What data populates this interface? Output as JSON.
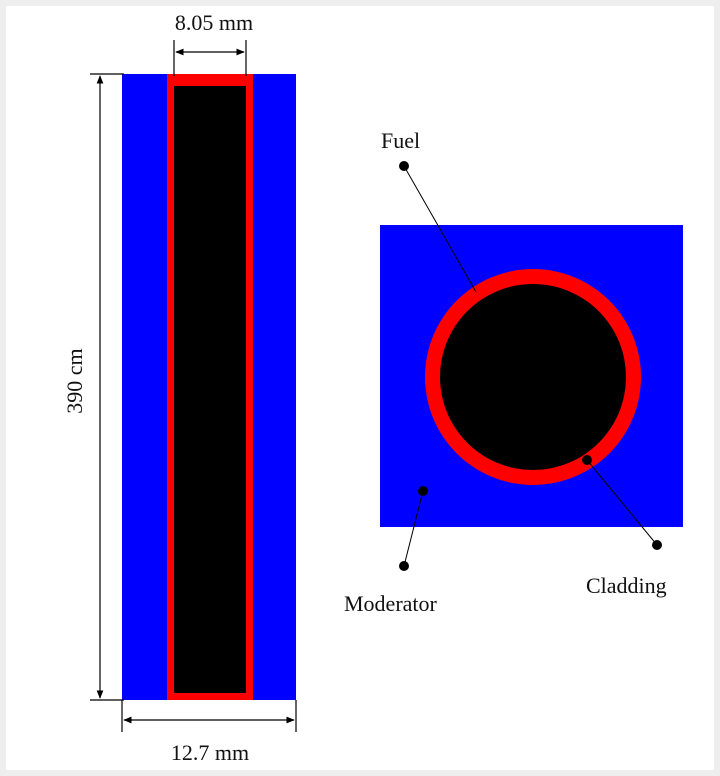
{
  "figure": {
    "labels": {
      "fuel": "Fuel",
      "cladding": "Cladding",
      "moderator": "Moderator"
    },
    "dimensions": {
      "fuel_width": "8.05 mm",
      "rod_height": "390 cm",
      "cell_width": "12.7 mm"
    },
    "colors": {
      "moderator": "#0000ff",
      "cladding": "#ff0000",
      "fuel": "#000000",
      "lines": "#000000"
    }
  }
}
